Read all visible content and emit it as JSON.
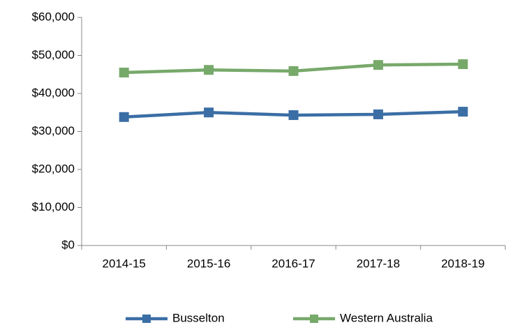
{
  "chart_data": {
    "type": "line",
    "categories": [
      "2014-15",
      "2015-16",
      "2016-17",
      "2017-18",
      "2018-19"
    ],
    "series": [
      {
        "name": "Busselton",
        "color": "#3b6ea5",
        "values": [
          33800,
          35000,
          34300,
          34500,
          35200
        ]
      },
      {
        "name": "Western Australia",
        "color": "#77a96a",
        "values": [
          45500,
          46200,
          45900,
          47500,
          47700
        ]
      }
    ],
    "ylim": [
      0,
      60000
    ],
    "yticks": [
      {
        "value": 0,
        "label": "$0"
      },
      {
        "value": 10000,
        "label": "$10,000"
      },
      {
        "value": 20000,
        "label": "$20,000"
      },
      {
        "value": 30000,
        "label": "$30,000"
      },
      {
        "value": 40000,
        "label": "$40,000"
      },
      {
        "value": 50000,
        "label": "$50,000"
      },
      {
        "value": 60000,
        "label": "$60,000"
      }
    ],
    "grid": false,
    "legend": "bottom"
  }
}
